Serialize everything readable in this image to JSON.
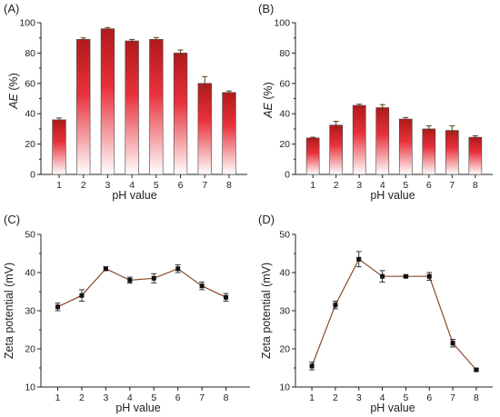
{
  "chart_data": [
    {
      "type": "bar",
      "panel_label": "(A)",
      "xlabel": "pH value",
      "ylabel": "AE (%)",
      "ylim": [
        0,
        100
      ],
      "yticks": [
        0,
        20,
        40,
        60,
        80,
        100
      ],
      "categories": [
        "1",
        "2",
        "3",
        "4",
        "5",
        "6",
        "7",
        "8"
      ],
      "values": [
        36,
        89,
        96,
        88,
        89,
        80,
        60,
        54
      ],
      "errors": [
        1.2,
        1,
        0.8,
        1,
        1.2,
        2,
        4.5,
        1
      ],
      "grid": false,
      "colors": {
        "bar_top": "#b01a1a",
        "bar_bottom": "#ffffff",
        "cap": "#5a3a1a"
      }
    },
    {
      "type": "bar",
      "panel_label": "(B)",
      "xlabel": "pH value",
      "ylabel": "AE (%)",
      "ylim": [
        0,
        100
      ],
      "yticks": [
        0,
        20,
        40,
        60,
        80,
        100
      ],
      "categories": [
        "1",
        "2",
        "3",
        "4",
        "5",
        "6",
        "7",
        "8"
      ],
      "values": [
        24,
        32.5,
        45.5,
        44,
        36.5,
        30,
        29,
        24.5
      ],
      "errors": [
        0.5,
        2.5,
        0.8,
        2,
        1,
        2,
        3,
        1
      ],
      "grid": false,
      "colors": {
        "bar_top": "#b01a1a",
        "bar_bottom": "#ffffff",
        "cap": "#5a3a1a"
      }
    },
    {
      "type": "line",
      "panel_label": "(C)",
      "xlabel": "pH value",
      "ylabel": "Zeta potential (mV)",
      "xlim": [
        0.3,
        9
      ],
      "ylim": [
        10,
        50
      ],
      "yticks": [
        10,
        20,
        30,
        40,
        50
      ],
      "x": [
        1,
        2,
        3,
        4,
        5,
        6,
        7,
        8
      ],
      "y": [
        31,
        34,
        41,
        38,
        38.5,
        41,
        36.5,
        33.5
      ],
      "errors": [
        1,
        1.5,
        0.5,
        0.8,
        1.2,
        1,
        1,
        1
      ],
      "grid": false,
      "colors": {
        "line": "#8b4a2b",
        "marker": "#111111"
      }
    },
    {
      "type": "line",
      "panel_label": "(D)",
      "xlabel": "pH value",
      "ylabel": "Zeta potential (mV)",
      "xlim": [
        0.3,
        8.7
      ],
      "ylim": [
        10,
        50
      ],
      "yticks": [
        10,
        20,
        30,
        40,
        50
      ],
      "x": [
        1,
        2,
        3,
        4,
        5,
        6,
        7,
        8
      ],
      "y": [
        15.5,
        31.5,
        43.5,
        39,
        39,
        39,
        21.5,
        14.5
      ],
      "errors": [
        1,
        1,
        2,
        1.5,
        0.3,
        1,
        1,
        0.3
      ],
      "grid": false,
      "colors": {
        "line": "#8b4a2b",
        "marker": "#111111"
      }
    }
  ]
}
